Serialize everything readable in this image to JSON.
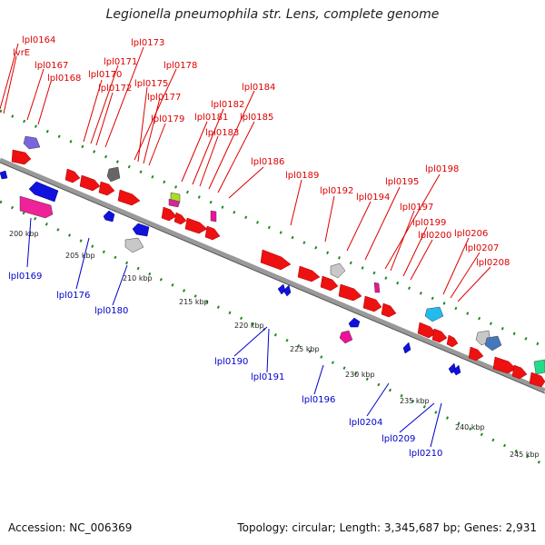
{
  "title": "Legionella pneumophila str. Lens, complete genome",
  "footer": {
    "accession": "Accession: NC_006369",
    "summary": "Topology: circular; Length: 3,345,687 bp; Genes: 2,931"
  },
  "colors": {
    "forward": "#ee1111",
    "reverse": "#1111dd",
    "label_forward": "#dd0000",
    "label_reverse": "#0000cc",
    "backbone": "#999999",
    "dots": "#228822"
  },
  "scale_labels": [
    "200 kbp",
    "205 kbp",
    "210 kbp",
    "215 kbp",
    "220 kbp",
    "225 kbp",
    "230 kbp",
    "235 kbp",
    "240 kbp",
    "245 kbp"
  ],
  "forward_gene_labels": [
    "lpl0164",
    "lvrE",
    "lpl0167",
    "lpl0168",
    "lpl0170",
    "lpl0171",
    "lpl0172",
    "lpl0173",
    "lpl0175",
    "lpl0177",
    "lpl0178",
    "lpl0179",
    "lpl0181",
    "lpl0182",
    "lpl0183",
    "lpl0184",
    "lpl0185",
    "lpl0186",
    "lpl0189",
    "lpl0192",
    "lpl0194",
    "lpl0195",
    "lpl0197",
    "lpl0198",
    "lpl0199",
    "lpl0200",
    "lpl0206",
    "lpl0207",
    "lpl0208"
  ],
  "reverse_gene_labels": [
    "lpl0169",
    "lpl0176",
    "lpl0180",
    "lpl0190",
    "lpl0191",
    "lpl0196",
    "lpl0204",
    "lpl0209",
    "lpl0210"
  ]
}
